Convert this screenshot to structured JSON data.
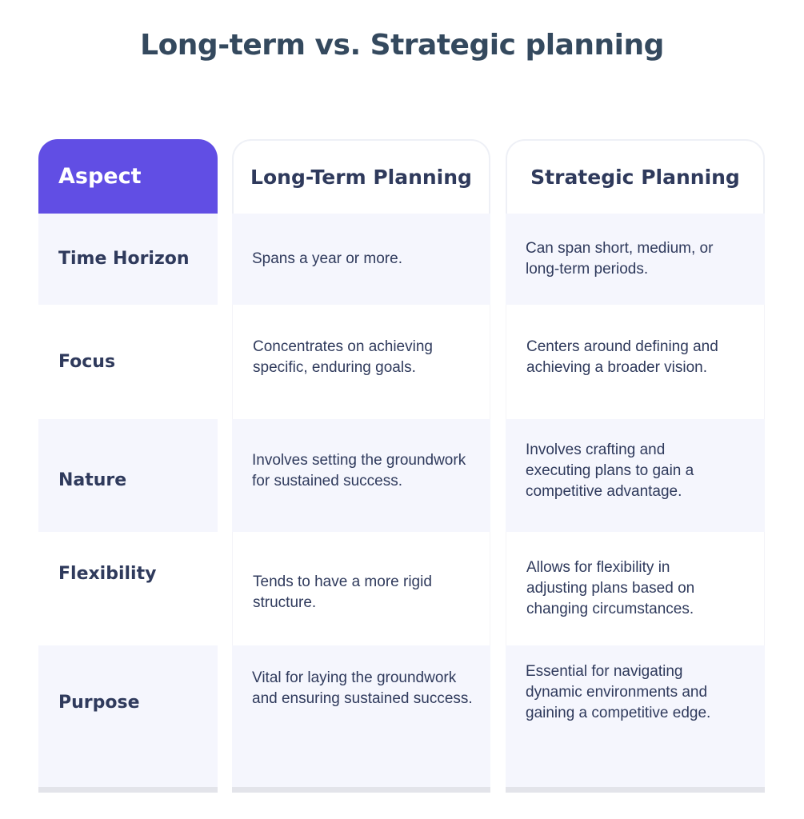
{
  "title": "Long-term vs. Strategic planning",
  "headers": [
    "Aspect",
    "Long-Term Planning",
    "Strategic Planning"
  ],
  "rows": [
    {
      "aspect": "Time Horizon",
      "long_term": "Spans a year or more.",
      "strategic": "Can span short, medium, or long-term periods."
    },
    {
      "aspect": "Focus",
      "long_term": "Concentrates on achieving specific, enduring goals.",
      "strategic": "Centers around defining and achieving a broader vision."
    },
    {
      "aspect": "Nature",
      "long_term": "Involves setting the groundwork for sustained success.",
      "strategic": "Involves crafting and executing plans to gain a competitive advantage."
    },
    {
      "aspect": "Flexibility",
      "long_term": "Tends to have a more rigid structure.",
      "strategic": "Allows for flexibility in adjusting plans based on changing circumstances."
    },
    {
      "aspect": "Purpose",
      "long_term": "Vital for laying the groundwork and ensuring sustained success.",
      "strategic": "Essential for navigating dynamic environments and gaining a competitive edge."
    }
  ],
  "colors": {
    "accent": "#614ee4",
    "text": "#2f3a5c",
    "title": "#34495e",
    "row_shade": "#f5f6fd"
  }
}
